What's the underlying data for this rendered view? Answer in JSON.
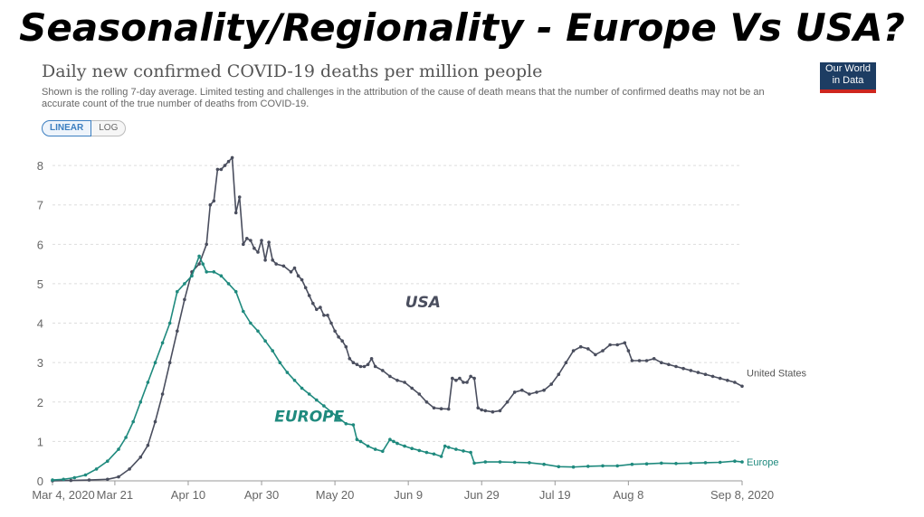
{
  "banner": "Seasonality/Regionality - Europe Vs USA?",
  "logo": {
    "line1": "Our World",
    "line2": "in Data"
  },
  "colors": {
    "usa": "#4a4e5e",
    "europe": "#1f8a7e",
    "grid": "#dddddd",
    "logo_bg": "#1d3d63",
    "logo_bar": "#ce261e"
  },
  "toggle": {
    "linear": "LINEAR",
    "log": "LOG"
  },
  "chart_data": {
    "type": "line",
    "title": "Daily new confirmed COVID-19 deaths per million people",
    "subtitle": "Shown is the rolling 7-day average. Limited testing and challenges in the attribution of the cause of death means that the number of confirmed deaths may not be an accurate count of the true number of deaths from COVID-19.",
    "x_ticks": [
      "Mar 4, 2020",
      "Mar 21",
      "Apr 10",
      "Apr 30",
      "May 20",
      "Jun 9",
      "Jun 29",
      "Jul 19",
      "Aug 8",
      "Sep 8, 2020"
    ],
    "x_tick_days": [
      0,
      17,
      37,
      57,
      77,
      97,
      117,
      137,
      157,
      188
    ],
    "xlim_days": [
      0,
      188
    ],
    "y_ticks": [
      "0",
      "1",
      "2",
      "3",
      "4",
      "5",
      "6",
      "7",
      "8"
    ],
    "ylim": [
      0,
      8.3
    ],
    "grid": true,
    "annotations": [
      {
        "text": "USA",
        "series": "United States"
      },
      {
        "text": "EUROPE",
        "series": "Europe"
      }
    ],
    "series": [
      {
        "name": "United States",
        "points": [
          [
            0,
            0
          ],
          [
            5,
            0.01
          ],
          [
            10,
            0.02
          ],
          [
            15,
            0.04
          ],
          [
            18,
            0.1
          ],
          [
            21,
            0.3
          ],
          [
            24,
            0.6
          ],
          [
            26,
            0.9
          ],
          [
            28,
            1.5
          ],
          [
            30,
            2.2
          ],
          [
            32,
            3.0
          ],
          [
            34,
            3.8
          ],
          [
            36,
            4.6
          ],
          [
            38,
            5.3
          ],
          [
            40,
            5.5
          ],
          [
            42,
            6.0
          ],
          [
            43,
            7.0
          ],
          [
            44,
            7.1
          ],
          [
            45,
            7.9
          ],
          [
            46,
            7.9
          ],
          [
            47,
            8.0
          ],
          [
            48,
            8.1
          ],
          [
            49,
            8.2
          ],
          [
            50,
            6.8
          ],
          [
            51,
            7.2
          ],
          [
            52,
            6.0
          ],
          [
            53,
            6.15
          ],
          [
            54,
            6.1
          ],
          [
            55,
            5.9
          ],
          [
            56,
            5.8
          ],
          [
            57,
            6.1
          ],
          [
            58,
            5.6
          ],
          [
            59,
            6.05
          ],
          [
            60,
            5.6
          ],
          [
            61,
            5.5
          ],
          [
            63,
            5.45
          ],
          [
            65,
            5.3
          ],
          [
            66,
            5.4
          ],
          [
            67,
            5.2
          ],
          [
            68,
            5.1
          ],
          [
            69,
            4.9
          ],
          [
            70,
            4.7
          ],
          [
            71,
            4.5
          ],
          [
            72,
            4.35
          ],
          [
            73,
            4.4
          ],
          [
            74,
            4.2
          ],
          [
            75,
            4.2
          ],
          [
            76,
            4.0
          ],
          [
            77,
            3.8
          ],
          [
            78,
            3.65
          ],
          [
            79,
            3.55
          ],
          [
            80,
            3.4
          ],
          [
            81,
            3.1
          ],
          [
            82,
            3.0
          ],
          [
            83,
            2.95
          ],
          [
            84,
            2.9
          ],
          [
            85,
            2.9
          ],
          [
            86,
            2.95
          ],
          [
            87,
            3.1
          ],
          [
            88,
            2.9
          ],
          [
            90,
            2.8
          ],
          [
            92,
            2.65
          ],
          [
            94,
            2.55
          ],
          [
            96,
            2.5
          ],
          [
            98,
            2.35
          ],
          [
            100,
            2.2
          ],
          [
            102,
            2.0
          ],
          [
            104,
            1.85
          ],
          [
            106,
            1.83
          ],
          [
            108,
            1.82
          ],
          [
            109,
            2.6
          ],
          [
            110,
            2.55
          ],
          [
            111,
            2.6
          ],
          [
            112,
            2.5
          ],
          [
            113,
            2.5
          ],
          [
            114,
            2.65
          ],
          [
            115,
            2.6
          ],
          [
            116,
            1.85
          ],
          [
            117,
            1.8
          ],
          [
            118,
            1.78
          ],
          [
            120,
            1.75
          ],
          [
            122,
            1.78
          ],
          [
            124,
            2.0
          ],
          [
            126,
            2.25
          ],
          [
            128,
            2.3
          ],
          [
            130,
            2.2
          ],
          [
            132,
            2.25
          ],
          [
            134,
            2.3
          ],
          [
            136,
            2.45
          ],
          [
            138,
            2.7
          ],
          [
            140,
            3.0
          ],
          [
            142,
            3.3
          ],
          [
            144,
            3.4
          ],
          [
            146,
            3.35
          ],
          [
            148,
            3.2
          ],
          [
            150,
            3.3
          ],
          [
            152,
            3.45
          ],
          [
            154,
            3.45
          ],
          [
            156,
            3.5
          ],
          [
            157,
            3.3
          ],
          [
            158,
            3.05
          ],
          [
            160,
            3.05
          ],
          [
            162,
            3.05
          ],
          [
            164,
            3.1
          ],
          [
            166,
            3.0
          ],
          [
            168,
            2.95
          ],
          [
            170,
            2.9
          ],
          [
            172,
            2.85
          ],
          [
            174,
            2.8
          ],
          [
            176,
            2.75
          ],
          [
            178,
            2.7
          ],
          [
            180,
            2.65
          ],
          [
            182,
            2.6
          ],
          [
            184,
            2.55
          ],
          [
            186,
            2.5
          ],
          [
            188,
            2.4
          ]
        ]
      },
      {
        "name": "Europe",
        "points": [
          [
            0,
            0.02
          ],
          [
            3,
            0.04
          ],
          [
            6,
            0.08
          ],
          [
            9,
            0.15
          ],
          [
            12,
            0.3
          ],
          [
            15,
            0.5
          ],
          [
            18,
            0.8
          ],
          [
            20,
            1.1
          ],
          [
            22,
            1.5
          ],
          [
            24,
            2.0
          ],
          [
            26,
            2.5
          ],
          [
            28,
            3.0
          ],
          [
            30,
            3.5
          ],
          [
            32,
            4.0
          ],
          [
            34,
            4.8
          ],
          [
            36,
            5.0
          ],
          [
            38,
            5.2
          ],
          [
            40,
            5.7
          ],
          [
            41,
            5.5
          ],
          [
            42,
            5.3
          ],
          [
            44,
            5.3
          ],
          [
            46,
            5.2
          ],
          [
            48,
            5.0
          ],
          [
            50,
            4.8
          ],
          [
            52,
            4.3
          ],
          [
            54,
            4.0
          ],
          [
            56,
            3.8
          ],
          [
            58,
            3.55
          ],
          [
            60,
            3.3
          ],
          [
            62,
            3.0
          ],
          [
            64,
            2.75
          ],
          [
            66,
            2.55
          ],
          [
            68,
            2.35
          ],
          [
            70,
            2.2
          ],
          [
            72,
            2.05
          ],
          [
            74,
            1.9
          ],
          [
            76,
            1.75
          ],
          [
            78,
            1.6
          ],
          [
            80,
            1.45
          ],
          [
            82,
            1.42
          ],
          [
            83,
            1.05
          ],
          [
            84,
            1.0
          ],
          [
            86,
            0.88
          ],
          [
            88,
            0.8
          ],
          [
            90,
            0.75
          ],
          [
            92,
            1.05
          ],
          [
            93,
            1.0
          ],
          [
            94,
            0.95
          ],
          [
            96,
            0.88
          ],
          [
            98,
            0.82
          ],
          [
            100,
            0.77
          ],
          [
            102,
            0.72
          ],
          [
            104,
            0.68
          ],
          [
            106,
            0.62
          ],
          [
            107,
            0.88
          ],
          [
            108,
            0.85
          ],
          [
            110,
            0.8
          ],
          [
            112,
            0.76
          ],
          [
            114,
            0.72
          ],
          [
            115,
            0.45
          ],
          [
            118,
            0.48
          ],
          [
            122,
            0.48
          ],
          [
            126,
            0.47
          ],
          [
            130,
            0.46
          ],
          [
            134,
            0.42
          ],
          [
            138,
            0.36
          ],
          [
            142,
            0.35
          ],
          [
            146,
            0.37
          ],
          [
            150,
            0.38
          ],
          [
            154,
            0.38
          ],
          [
            158,
            0.42
          ],
          [
            162,
            0.43
          ],
          [
            166,
            0.45
          ],
          [
            170,
            0.44
          ],
          [
            174,
            0.45
          ],
          [
            178,
            0.46
          ],
          [
            182,
            0.47
          ],
          [
            186,
            0.5
          ],
          [
            188,
            0.48
          ]
        ]
      }
    ]
  }
}
